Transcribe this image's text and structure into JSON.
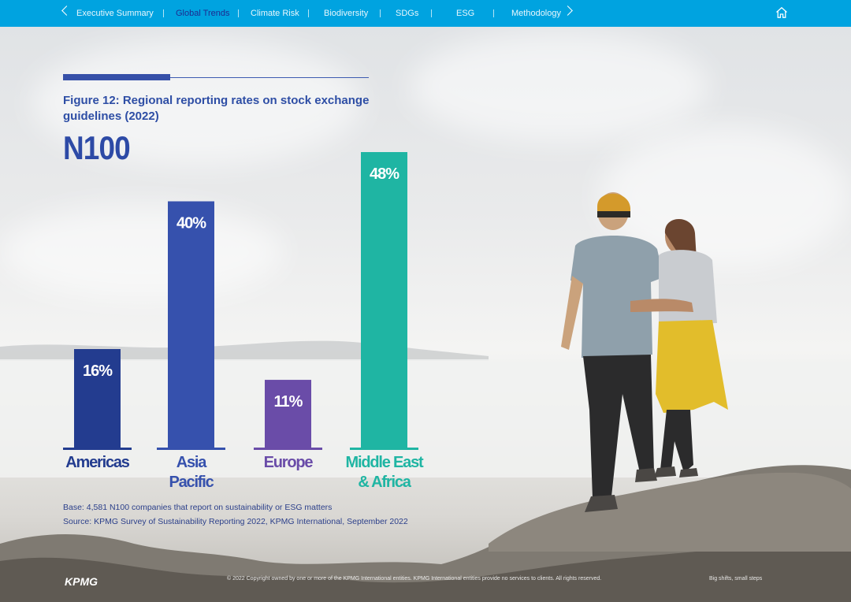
{
  "nav": {
    "items": [
      {
        "label": "Executive Summary",
        "active": false
      },
      {
        "label": "Global Trends",
        "active": true
      },
      {
        "label": "Climate Risk",
        "active": false
      },
      {
        "label": "Biodiversity",
        "active": false
      },
      {
        "label": "SDGs",
        "active": false
      },
      {
        "label": "ESG",
        "active": false
      },
      {
        "label": "Methodology",
        "active": false
      }
    ],
    "bar_color": "#00a3e0"
  },
  "figure": {
    "title": "Figure 12: Regional reporting rates on stock exchange guidelines (2022)",
    "subtitle": "N100",
    "base": "Base: 4,581 N100 companies that report on sustainability or ESG matters",
    "source": "Source: KPMG Survey of Sustainability Reporting 2022, KPMG International, September 2022"
  },
  "chart_data": {
    "type": "bar",
    "title": "Figure 12: Regional reporting rates on stock exchange guidelines (2022)",
    "subtitle": "N100",
    "categories": [
      "Americas",
      "Asia Pacific",
      "Europe",
      "Middle East & Africa"
    ],
    "category_lines": [
      [
        "Americas"
      ],
      [
        "Asia",
        "Pacific"
      ],
      [
        "Europe"
      ],
      [
        "Middle East",
        "& Africa"
      ]
    ],
    "values": [
      16,
      40,
      11,
      48
    ],
    "value_labels": [
      "16%",
      "40%",
      "11%",
      "48%"
    ],
    "colors": [
      "#233c8f",
      "#3651ad",
      "#6a4ca8",
      "#1fb5a3"
    ],
    "ylim": [
      0,
      48
    ],
    "grid": false,
    "legend": "none"
  },
  "footer": {
    "logo": "KPMG",
    "copyright": "© 2022 Copyright owned by one or more of the KPMG International entities. KPMG International entities provide no services to clients. All rights reserved.",
    "right_text": "Big shifts, small steps"
  }
}
